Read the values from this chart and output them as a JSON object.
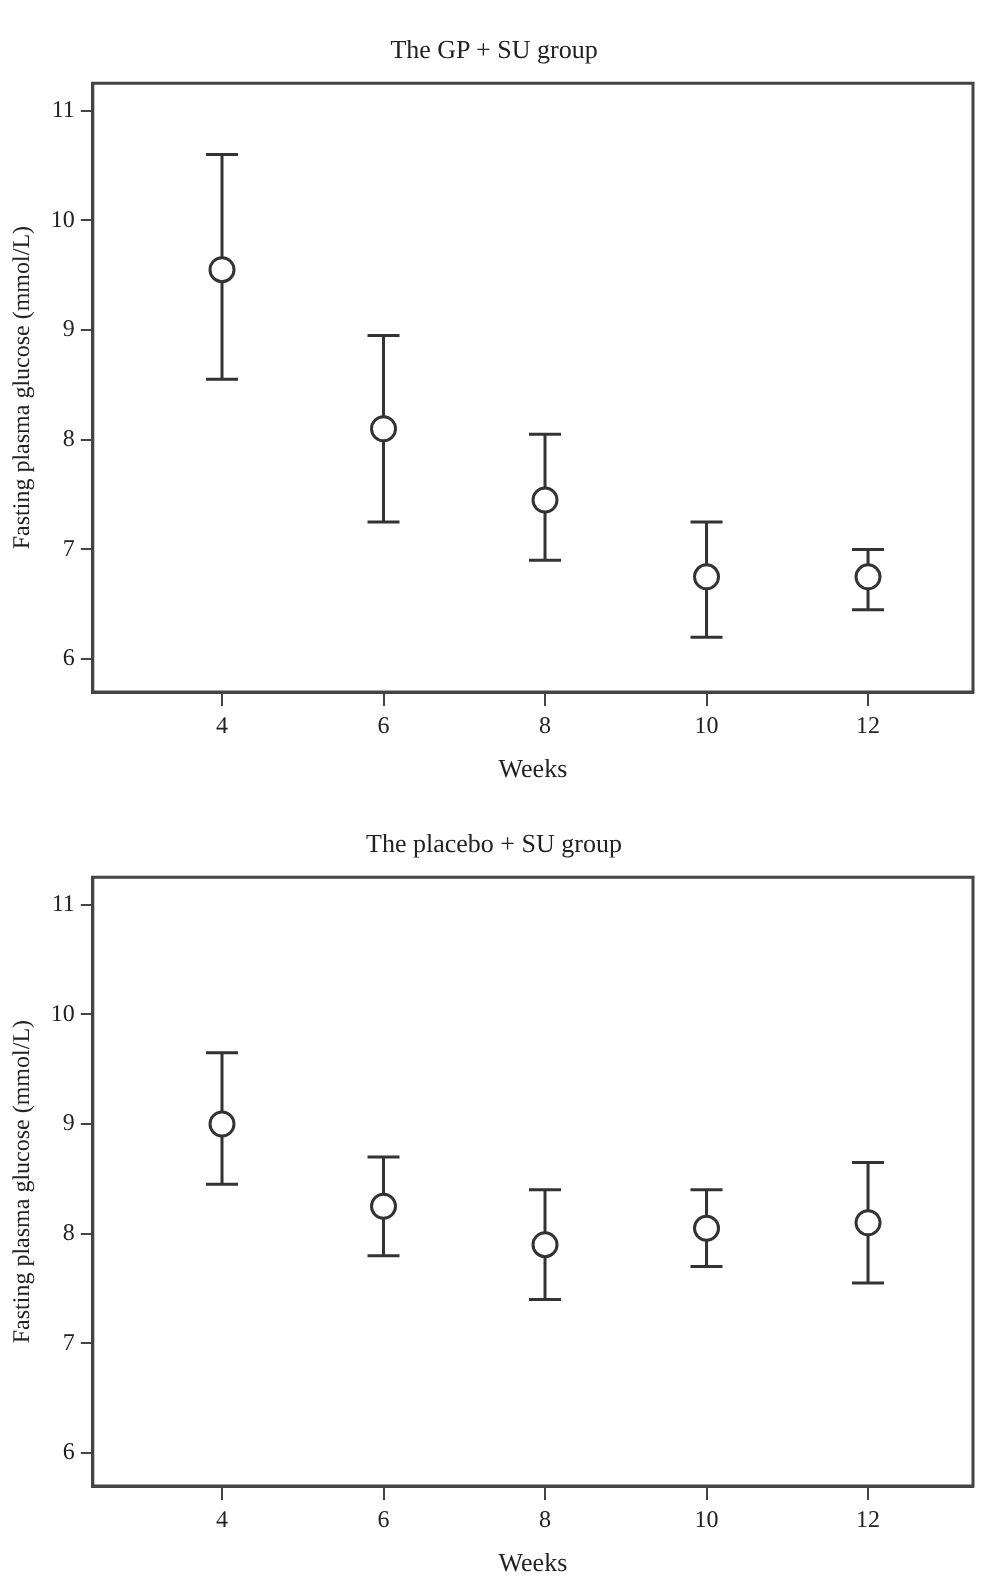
{
  "chart_data": [
    {
      "type": "scatter",
      "title": "The GP + SU group",
      "xlabel": "Weeks",
      "ylabel": "Fasting plasma glucose (mmol/L)",
      "x": [
        4,
        6,
        8,
        10,
        12
      ],
      "values": [
        9.55,
        8.1,
        7.45,
        6.75,
        6.75
      ],
      "errors": [
        [
          8.55,
          10.6
        ],
        [
          7.25,
          8.95
        ],
        [
          6.9,
          8.05
        ],
        [
          6.2,
          7.25
        ],
        [
          6.45,
          7.0
        ]
      ],
      "color": "#333333",
      "marker": "circle",
      "xlim": [
        2.4,
        13.3
      ],
      "xticks": [
        4,
        6,
        8,
        10,
        12
      ],
      "ylim": [
        5.7,
        11.25
      ],
      "yticks": [
        6,
        7,
        8,
        9,
        10,
        11
      ]
    },
    {
      "type": "scatter",
      "title": "The placebo + SU group",
      "xlabel": "Weeks",
      "ylabel": "Fasting plasma glucose (mmol/L)",
      "x": [
        4,
        6,
        8,
        10,
        12
      ],
      "values": [
        9.0,
        8.25,
        7.9,
        8.05,
        8.1
      ],
      "errors": [
        [
          8.45,
          9.65
        ],
        [
          7.8,
          8.7
        ],
        [
          7.4,
          8.4
        ],
        [
          7.7,
          8.4
        ],
        [
          7.55,
          8.65
        ]
      ],
      "color": "#333333",
      "marker": "circle",
      "xlim": [
        2.4,
        13.3
      ],
      "xticks": [
        4,
        6,
        8,
        10,
        12
      ],
      "ylim": [
        5.7,
        11.25
      ],
      "yticks": [
        6,
        7,
        8,
        9,
        10,
        11
      ]
    }
  ]
}
